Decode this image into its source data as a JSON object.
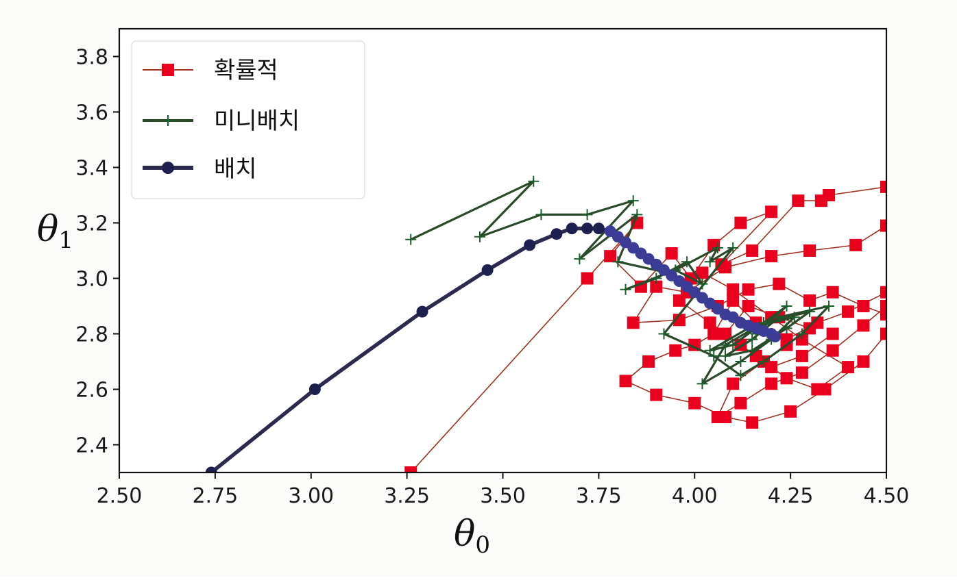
{
  "chart_data": {
    "type": "line",
    "title": "",
    "xlabel": "θ",
    "xlabel_subscript": "0",
    "ylabel": "θ",
    "ylabel_subscript": "1",
    "xlim": [
      2.5,
      4.5
    ],
    "ylim": [
      2.3,
      3.9
    ],
    "grid": false,
    "legend_position": "top-left",
    "x_ticks": [
      {
        "value": 2.5,
        "label": "2.50"
      },
      {
        "value": 2.75,
        "label": "2.75"
      },
      {
        "value": 3.0,
        "label": "3.00"
      },
      {
        "value": 3.25,
        "label": "3.25"
      },
      {
        "value": 3.5,
        "label": "3.50"
      },
      {
        "value": 3.75,
        "label": "3.75"
      },
      {
        "value": 4.0,
        "label": "4.00"
      },
      {
        "value": 4.25,
        "label": "4.25"
      },
      {
        "value": 4.5,
        "label": "4.50"
      }
    ],
    "y_ticks": [
      {
        "value": 2.4,
        "label": "2.4"
      },
      {
        "value": 2.6,
        "label": "2.6"
      },
      {
        "value": 2.8,
        "label": "2.8"
      },
      {
        "value": 3.0,
        "label": "3.0"
      },
      {
        "value": 3.2,
        "label": "3.2"
      },
      {
        "value": 3.4,
        "label": "3.4"
      },
      {
        "value": 3.6,
        "label": "3.6"
      },
      {
        "value": 3.8,
        "label": "3.8"
      }
    ],
    "series": [
      {
        "name": "확률적",
        "color": "#e8001c",
        "line_color": "#a03020",
        "marker": "square",
        "x": [
          3.26,
          3.72,
          3.85,
          3.78,
          3.86,
          3.94,
          3.99,
          4.05,
          4.12,
          4.2,
          4.07,
          4.15,
          4.27,
          4.33,
          4.35,
          4.5,
          4.5,
          4.42,
          4.3,
          4.2,
          4.08,
          3.98,
          3.9,
          3.84,
          3.96,
          4.06,
          4.14,
          4.22,
          4.3,
          4.36,
          4.44,
          4.5,
          4.5,
          4.4,
          4.32,
          4.24,
          4.16,
          4.1,
          4.05,
          4.0,
          3.95,
          3.88,
          3.82,
          3.9,
          4.0,
          4.08,
          4.15,
          4.25,
          4.34,
          4.44,
          4.5,
          4.5,
          4.44,
          4.36,
          4.28,
          4.2,
          4.12,
          4.06,
          4.1,
          4.18,
          4.24,
          4.3,
          4.22,
          4.14,
          4.08,
          4.16,
          4.24,
          4.32,
          4.4,
          4.28,
          4.2,
          4.1,
          4.02,
          3.96,
          4.04,
          4.12,
          4.2,
          4.28,
          4.36
        ],
        "y": [
          2.3,
          3.0,
          3.2,
          3.08,
          2.97,
          3.09,
          3.0,
          3.12,
          3.2,
          3.24,
          3.05,
          3.1,
          3.28,
          3.28,
          3.3,
          3.33,
          3.19,
          3.12,
          3.1,
          3.08,
          3.04,
          2.95,
          2.97,
          2.84,
          2.85,
          2.9,
          2.96,
          2.98,
          2.92,
          2.95,
          2.9,
          2.87,
          2.95,
          2.88,
          2.84,
          2.78,
          2.84,
          2.92,
          2.8,
          2.76,
          2.74,
          2.7,
          2.63,
          2.58,
          2.55,
          2.5,
          2.48,
          2.52,
          2.6,
          2.7,
          2.8,
          2.9,
          2.83,
          2.74,
          2.66,
          2.62,
          2.55,
          2.5,
          2.62,
          2.7,
          2.76,
          2.82,
          2.86,
          2.9,
          2.8,
          2.72,
          2.64,
          2.6,
          2.68,
          2.78,
          2.86,
          2.96,
          3.02,
          2.92,
          2.84,
          2.76,
          2.68,
          2.72,
          2.8
        ]
      },
      {
        "name": "미니배치",
        "color": "#1a5c2a",
        "line_color": "#2a4a2a",
        "marker": "plus",
        "x": [
          3.26,
          3.58,
          3.44,
          3.6,
          3.72,
          3.84,
          3.7,
          3.85,
          3.8,
          3.93,
          3.82,
          3.9,
          3.98,
          4.02,
          3.95,
          4.06,
          4.04,
          4.1,
          3.92,
          4.05,
          4.12,
          4.18,
          4.28,
          4.35,
          4.22,
          4.15,
          4.08,
          4.15,
          4.24,
          4.3,
          4.18,
          4.08,
          4.02,
          4.12,
          4.2,
          4.26,
          4.14,
          4.04,
          4.1,
          4.18,
          4.24,
          4.16
        ],
        "y": [
          3.14,
          3.35,
          3.15,
          3.23,
          3.23,
          3.28,
          3.07,
          3.23,
          3.06,
          3.02,
          2.96,
          3.0,
          3.06,
          2.98,
          3.03,
          3.11,
          3.06,
          3.11,
          2.8,
          2.72,
          2.65,
          2.7,
          2.8,
          2.9,
          2.86,
          2.78,
          2.72,
          2.74,
          2.82,
          2.88,
          2.84,
          2.76,
          2.62,
          2.7,
          2.78,
          2.86,
          2.82,
          2.74,
          2.76,
          2.84,
          2.9,
          2.8
        ]
      },
      {
        "name": "배치",
        "color": "#1e2050",
        "line_color": "#2c2a4e",
        "tail_color": "#3a3c96",
        "marker": "circle",
        "x": [
          2.74,
          3.01,
          3.29,
          3.46,
          3.57,
          3.64,
          3.68,
          3.72,
          3.75,
          3.78,
          3.8,
          3.82,
          3.84,
          3.86,
          3.88,
          3.9,
          3.92,
          3.94,
          3.96,
          3.98,
          4.0,
          4.02,
          4.04,
          4.06,
          4.08,
          4.1,
          4.12,
          4.14,
          4.16,
          4.18,
          4.2,
          4.21
        ],
        "y": [
          2.3,
          2.6,
          2.88,
          3.03,
          3.12,
          3.16,
          3.18,
          3.18,
          3.18,
          3.17,
          3.15,
          3.13,
          3.11,
          3.09,
          3.07,
          3.05,
          3.03,
          3.01,
          2.99,
          2.97,
          2.95,
          2.93,
          2.91,
          2.89,
          2.87,
          2.86,
          2.84,
          2.83,
          2.82,
          2.81,
          2.8,
          2.79
        ]
      }
    ]
  }
}
